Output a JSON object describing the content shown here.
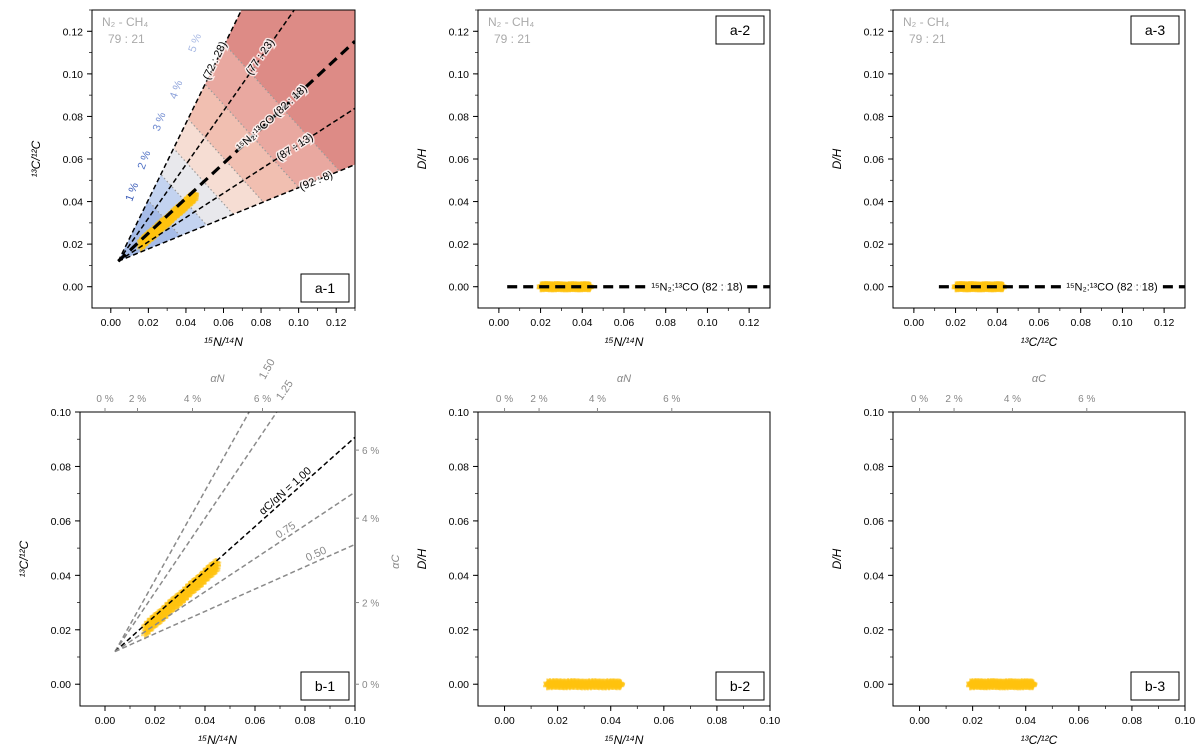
{
  "chart_data": [
    {
      "id": "a-1",
      "type": "scatter",
      "panel_label": "a-1",
      "corner_label_1": "N₂ - CH₄",
      "corner_label_2": "79 : 21",
      "xlabel": "¹⁵N/¹⁴N",
      "ylabel": "¹³C/¹²C",
      "xlim": [
        -0.01,
        0.13
      ],
      "ylim": [
        -0.01,
        0.13
      ],
      "xticks": [
        "0.00",
        "0.02",
        "0.04",
        "0.06",
        "0.08",
        "0.10",
        "0.12"
      ],
      "yticks": [
        "0.00",
        "0.02",
        "0.04",
        "0.06",
        "0.08",
        "0.10",
        "0.12"
      ],
      "origin": [
        0.004,
        0.012
      ],
      "mixing_lines": [
        {
          "label": "(72 : 28)",
          "slope": 1.8
        },
        {
          "label": "(77 : 23)",
          "slope": 1.26
        },
        {
          "label": "(82 : 18)",
          "slope": 0.82,
          "bold": true,
          "prefix": "¹⁵N₂:¹³CO"
        },
        {
          "label": "(87 : 13)",
          "slope": 0.57
        },
        {
          "label": "(92 : 8)",
          "slope": 0.36
        }
      ],
      "alpha_labels": [
        "1 %",
        "2 %",
        "3 %",
        "4 %",
        "5 %"
      ],
      "alpha_cuts": [
        0.035,
        0.05,
        0.065,
        0.082,
        0.102,
        0.125
      ],
      "band_colors": [
        "#a6bce8",
        "#c3d3f0",
        "#e8e8ec",
        "#f6ddd3",
        "#f1bfb1",
        "#e9a8a0",
        "#dd8b86"
      ],
      "data_range": {
        "x": [
          0.016,
          0.045
        ],
        "y": [
          0.02,
          0.043
        ]
      },
      "marker_color": "#ffc20e"
    },
    {
      "id": "a-2",
      "type": "scatter",
      "panel_label": "a-2",
      "corner_label_1": "N₂ - CH₄",
      "corner_label_2": "79 : 21",
      "xlabel": "¹⁵N/¹⁴N",
      "ylabel": "D/H",
      "xlim": [
        -0.01,
        0.13
      ],
      "ylim": [
        -0.01,
        0.13
      ],
      "xticks": [
        "0.00",
        "0.02",
        "0.04",
        "0.06",
        "0.08",
        "0.10",
        "0.12"
      ],
      "yticks": [
        "0.00",
        "0.02",
        "0.04",
        "0.06",
        "0.08",
        "0.10",
        "0.12"
      ],
      "line_label": "¹⁵N₂:¹³CO (82 : 18)",
      "line_from": 0.004,
      "data_range": {
        "x": [
          0.02,
          0.044
        ],
        "y": [
          0.0,
          0.0
        ]
      },
      "marker_color": "#ffc20e"
    },
    {
      "id": "a-3",
      "type": "scatter",
      "panel_label": "a-3",
      "corner_label_1": "N₂ - CH₄",
      "corner_label_2": "79 : 21",
      "xlabel": "¹³C/¹²C",
      "ylabel": "D/H",
      "xlim": [
        -0.01,
        0.13
      ],
      "ylim": [
        -0.01,
        0.13
      ],
      "xticks": [
        "0.00",
        "0.02",
        "0.04",
        "0.06",
        "0.08",
        "0.10",
        "0.12"
      ],
      "yticks": [
        "0.00",
        "0.02",
        "0.04",
        "0.06",
        "0.08",
        "0.10",
        "0.12"
      ],
      "line_label": "¹⁵N₂:¹³CO (82 : 18)",
      "line_from": 0.012,
      "data_range": {
        "x": [
          0.02,
          0.043
        ],
        "y": [
          0.0,
          0.0
        ]
      },
      "marker_color": "#ffc20e"
    },
    {
      "id": "b-1",
      "type": "scatter",
      "panel_label": "b-1",
      "xlabel": "¹⁵N/¹⁴N",
      "ylabel": "¹³C/¹²C",
      "top_axis_label": "αN",
      "right_axis_label": "αC",
      "xlim": [
        -0.01,
        0.1
      ],
      "ylim": [
        -0.008,
        0.1
      ],
      "xticks": [
        "0.00",
        "0.02",
        "0.04",
        "0.06",
        "0.08",
        "0.10"
      ],
      "yticks": [
        "0.00",
        "0.02",
        "0.04",
        "0.06",
        "0.08",
        "0.10"
      ],
      "top_ticks": [
        "0 %",
        "2 %",
        "4 %",
        "6 %"
      ],
      "right_ticks": [
        "0 %",
        "2 %",
        "4 %",
        "6 %"
      ],
      "origin": [
        0.004,
        0.012
      ],
      "ratio_lines": [
        {
          "label": "1.50",
          "slope": 1.64
        },
        {
          "label": "1.25",
          "slope": 1.36
        },
        {
          "label": "αC/αN = 1.00",
          "slope": 0.82,
          "dark": true
        },
        {
          "label": "0.75",
          "slope": 0.61
        },
        {
          "label": "0.50",
          "slope": 0.41
        }
      ],
      "data_range": {
        "x": [
          0.016,
          0.045
        ],
        "y": [
          0.02,
          0.044
        ]
      },
      "marker_color": "#ffc20e"
    },
    {
      "id": "b-2",
      "type": "scatter",
      "panel_label": "b-2",
      "xlabel": "¹⁵N/¹⁴N",
      "ylabel": "D/H",
      "top_axis_label": "αN",
      "xlim": [
        -0.01,
        0.1
      ],
      "ylim": [
        -0.008,
        0.1
      ],
      "xticks": [
        "0.00",
        "0.02",
        "0.04",
        "0.06",
        "0.08",
        "0.10"
      ],
      "yticks": [
        "0.00",
        "0.02",
        "0.04",
        "0.06",
        "0.08",
        "0.10"
      ],
      "top_ticks": [
        "0 %",
        "2 %",
        "4 %",
        "6 %"
      ],
      "data_range": {
        "x": [
          0.016,
          0.044
        ],
        "y": [
          0.0,
          0.0
        ]
      },
      "marker_color": "#ffc20e"
    },
    {
      "id": "b-3",
      "type": "scatter",
      "panel_label": "b-3",
      "xlabel": "¹³C/¹²C",
      "ylabel": "D/H",
      "top_axis_label": "αC",
      "xlim": [
        -0.01,
        0.1
      ],
      "ylim": [
        -0.008,
        0.1
      ],
      "xticks": [
        "0.00",
        "0.02",
        "0.04",
        "0.06",
        "0.08",
        "0.10"
      ],
      "yticks": [
        "0.00",
        "0.02",
        "0.04",
        "0.06",
        "0.08",
        "0.10"
      ],
      "top_ticks": [
        "0 %",
        "2 %",
        "4 %",
        "6 %"
      ],
      "data_range": {
        "x": [
          0.019,
          0.043
        ],
        "y": [
          0.0,
          0.0
        ]
      },
      "marker_color": "#ffc20e"
    }
  ]
}
